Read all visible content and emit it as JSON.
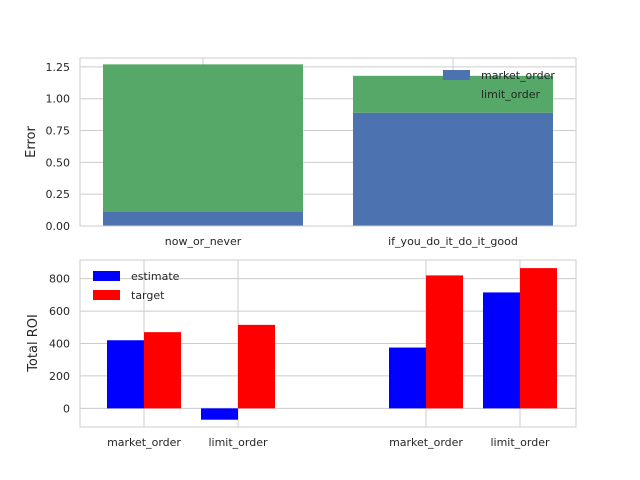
{
  "chart_data": [
    {
      "type": "bar",
      "stacked": true,
      "categories": [
        "now_or_never",
        "if_you_do_it_do_it_good"
      ],
      "series": [
        {
          "name": "market_order",
          "color": "#4c72b0",
          "values": [
            0.11,
            0.89
          ]
        },
        {
          "name": "limit_order",
          "color": "#55a868",
          "values": [
            1.16,
            0.29
          ]
        }
      ],
      "ylabel": "Error",
      "ylim": [
        0,
        1.32
      ],
      "yticks": [
        "0.00",
        "0.25",
        "0.50",
        "0.75",
        "1.00",
        "1.25"
      ],
      "ytick_values": [
        0,
        0.25,
        0.5,
        0.75,
        1.0,
        1.25
      ],
      "grid": true,
      "legend": "top-right"
    },
    {
      "type": "bar",
      "grouped": true,
      "categories": [
        "market_order",
        "limit_order",
        "market_order",
        "limit_order"
      ],
      "series": [
        {
          "name": "estimate",
          "color": "#0000ff",
          "values": [
            420,
            -70,
            375,
            715
          ]
        },
        {
          "name": "target",
          "color": "#ff0000",
          "values": [
            470,
            515,
            820,
            865
          ]
        }
      ],
      "ylabel": "Total ROI",
      "ylim": [
        -115,
        915
      ],
      "yticks": [
        "0",
        "200",
        "400",
        "600",
        "800"
      ],
      "ytick_values": [
        0,
        200,
        400,
        600,
        800
      ],
      "grid": true,
      "legend": "top-left"
    }
  ]
}
